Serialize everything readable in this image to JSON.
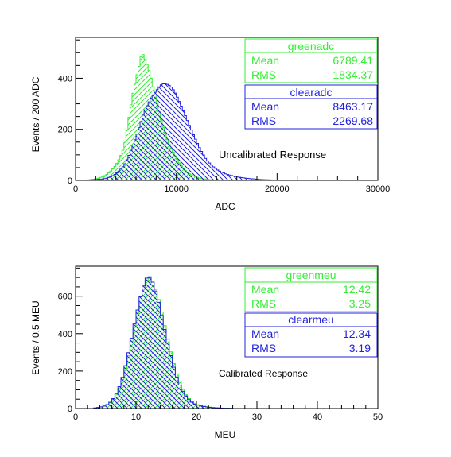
{
  "chart_data": [
    {
      "type": "histogram",
      "title": "",
      "annotation": "Uncalibrated Response",
      "xlabel": "ADC",
      "ylabel": "Events / 200 ADC",
      "xlim": [
        0,
        30000
      ],
      "ylim": [
        0,
        560
      ],
      "x_ticks": [
        0,
        10000,
        20000,
        30000
      ],
      "y_ticks": [
        0,
        200,
        400
      ],
      "bin_width": 200,
      "series": [
        {
          "name": "greenadc",
          "color": "#33ee33",
          "stats": {
            "mean_label": "Mean",
            "mean": "6789.41",
            "rms_label": "RMS",
            "rms": "1834.37"
          },
          "bins": [
            [
              1000,
              1
            ],
            [
              1600,
              3
            ],
            [
              2000,
              6
            ],
            [
              2400,
              10
            ],
            [
              2800,
              16
            ],
            [
              3200,
              26
            ],
            [
              3600,
              40
            ],
            [
              4000,
              60
            ],
            [
              4400,
              88
            ],
            [
              4800,
              128
            ],
            [
              5000,
              170
            ],
            [
              5200,
              222
            ],
            [
              5400,
              272
            ],
            [
              5600,
              320
            ],
            [
              5800,
              362
            ],
            [
              6000,
              398
            ],
            [
              6200,
              430
            ],
            [
              6400,
              462
            ],
            [
              6600,
              505
            ],
            [
              6800,
              480
            ],
            [
              7000,
              468
            ],
            [
              7200,
              440
            ],
            [
              7400,
              420
            ],
            [
              7600,
              380
            ],
            [
              7800,
              352
            ],
            [
              8000,
              318
            ],
            [
              8200,
              286
            ],
            [
              8400,
              252
            ],
            [
              8600,
              222
            ],
            [
              8800,
              196
            ],
            [
              9000,
              170
            ],
            [
              9200,
              148
            ],
            [
              9600,
              118
            ],
            [
              10000,
              88
            ],
            [
              10400,
              62
            ],
            [
              10800,
              42
            ],
            [
              11200,
              28
            ],
            [
              11800,
              16
            ],
            [
              12400,
              8
            ],
            [
              13200,
              3
            ],
            [
              14000,
              1
            ]
          ]
        },
        {
          "name": "clearadc",
          "color": "#2222dd",
          "stats": {
            "mean_label": "Mean",
            "mean": "8463.17",
            "rms_label": "RMS",
            "rms": "2269.68"
          },
          "bins": [
            [
              1000,
              1
            ],
            [
              2000,
              3
            ],
            [
              2800,
              6
            ],
            [
              3200,
              10
            ],
            [
              3600,
              16
            ],
            [
              4000,
              26
            ],
            [
              4400,
              40
            ],
            [
              4800,
              58
            ],
            [
              5200,
              88
            ],
            [
              5600,
              128
            ],
            [
              6000,
              170
            ],
            [
              6400,
              218
            ],
            [
              6800,
              268
            ],
            [
              7200,
              300
            ],
            [
              7600,
              330
            ],
            [
              8000,
              350
            ],
            [
              8400,
              372
            ],
            [
              8800,
              380
            ],
            [
              9000,
              378
            ],
            [
              9400,
              370
            ],
            [
              9800,
              350
            ],
            [
              10200,
              318
            ],
            [
              10600,
              282
            ],
            [
              11000,
              244
            ],
            [
              11400,
              206
            ],
            [
              11800,
              170
            ],
            [
              12200,
              136
            ],
            [
              12600,
              106
            ],
            [
              13000,
              80
            ],
            [
              13600,
              56
            ],
            [
              14200,
              38
            ],
            [
              15000,
              24
            ],
            [
              16000,
              14
            ],
            [
              17000,
              8
            ],
            [
              18500,
              3
            ],
            [
              20000,
              1
            ]
          ]
        }
      ]
    },
    {
      "type": "histogram",
      "title": "",
      "annotation": "Calibrated Response",
      "xlabel": "MEU",
      "ylabel": "Events / 0.5 MEU",
      "xlim": [
        0,
        50
      ],
      "ylim": [
        0,
        760
      ],
      "x_ticks": [
        0,
        10,
        20,
        30,
        40,
        50
      ],
      "y_ticks": [
        0,
        200,
        400,
        600
      ],
      "bin_width": 0.5,
      "series": [
        {
          "name": "greenmeu",
          "color": "#33ee33",
          "stats": {
            "mean_label": "Mean",
            "mean": "12.42",
            "rms_label": "RMS",
            "rms": "3.25"
          },
          "bins": [
            [
              3,
              2
            ],
            [
              4,
              6
            ],
            [
              5,
              14
            ],
            [
              5.5,
              24
            ],
            [
              6,
              38
            ],
            [
              6.5,
              58
            ],
            [
              7,
              88
            ],
            [
              7.5,
              128
            ],
            [
              8,
              182
            ],
            [
              8.5,
              246
            ],
            [
              9,
              318
            ],
            [
              9.5,
              400
            ],
            [
              10,
              470
            ],
            [
              10.5,
              548
            ],
            [
              11,
              610
            ],
            [
              11.5,
              665
            ],
            [
              12,
              705
            ],
            [
              12.5,
              690
            ],
            [
              13,
              660
            ],
            [
              13.5,
              612
            ],
            [
              14,
              552
            ],
            [
              14.5,
              480
            ],
            [
              15,
              405
            ],
            [
              15.5,
              335
            ],
            [
              16,
              270
            ],
            [
              16.5,
              210
            ],
            [
              17,
              160
            ],
            [
              17.5,
              118
            ],
            [
              18,
              86
            ],
            [
              18.5,
              62
            ],
            [
              19,
              44
            ],
            [
              19.5,
              31
            ],
            [
              20,
              22
            ],
            [
              21,
              14
            ],
            [
              22,
              9
            ],
            [
              23,
              5
            ],
            [
              24.5,
              2
            ],
            [
              26,
              1
            ]
          ]
        },
        {
          "name": "clearmeu",
          "color": "#2222dd",
          "stats": {
            "mean_label": "Mean",
            "mean": "12.34",
            "rms_label": "RMS",
            "rms": "3.19"
          },
          "bins": [
            [
              3,
              2
            ],
            [
              4,
              7
            ],
            [
              5,
              16
            ],
            [
              5.5,
              26
            ],
            [
              6,
              42
            ],
            [
              6.5,
              64
            ],
            [
              7,
              95
            ],
            [
              7.5,
              138
            ],
            [
              8,
              195
            ],
            [
              8.5,
              262
            ],
            [
              9,
              335
            ],
            [
              9.5,
              415
            ],
            [
              10,
              488
            ],
            [
              10.5,
              565
            ],
            [
              11,
              628
            ],
            [
              11.5,
              682
            ],
            [
              12,
              712
            ],
            [
              12.5,
              695
            ],
            [
              13,
              655
            ],
            [
              13.5,
              600
            ],
            [
              14,
              535
            ],
            [
              14.5,
              460
            ],
            [
              15,
              385
            ],
            [
              15.5,
              315
            ],
            [
              16,
              250
            ],
            [
              16.5,
              192
            ],
            [
              17,
              145
            ],
            [
              17.5,
              106
            ],
            [
              18,
              78
            ],
            [
              18.5,
              56
            ],
            [
              19,
              40
            ],
            [
              19.5,
              28
            ],
            [
              20,
              20
            ],
            [
              21,
              12
            ],
            [
              22,
              7
            ],
            [
              23,
              4
            ],
            [
              24.5,
              2
            ],
            [
              26,
              1
            ]
          ]
        }
      ]
    }
  ]
}
